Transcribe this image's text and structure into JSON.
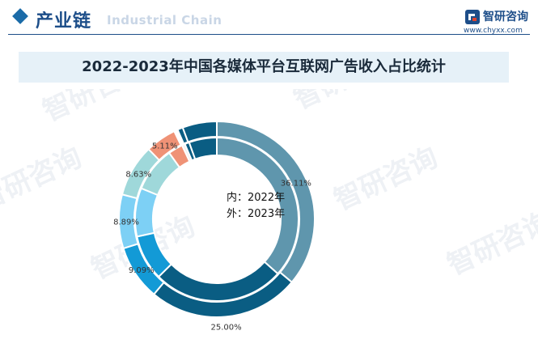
{
  "header": {
    "section_title": "产业链",
    "section_subtitle": "Industrial Chain",
    "brand_name": "智研咨询",
    "brand_url": "www.chyxx.com"
  },
  "chart_title": "2022-2023年中国各媒体平台互联网广告收入占比统计",
  "center_labels": [
    "内：2022年",
    "外：2023年"
  ],
  "watermark_text": "智研咨询",
  "colors": {
    "accent": "#1d4e89"
  },
  "chart_data": {
    "type": "pie",
    "title": "2022-2023年中国各媒体平台互联网广告收入占比统计",
    "series": [
      {
        "name": "2022年",
        "values": [
          36.6,
          26.0,
          9.0,
          9.6,
          8.9,
          2.9,
          0.6,
          0.9,
          5.5
        ],
        "colors": [
          "#5f96ad",
          "#0a5d83",
          "#139ad6",
          "#7dd0f5",
          "#9fd8da",
          "#ef9276",
          "#f0f0f0",
          "#0a5d83",
          "#0a5d83"
        ]
      },
      {
        "name": "2023年",
        "values": [
          36.11,
          25.0,
          9.09,
          8.89,
          8.63,
          5.11,
          0.6,
          0.9,
          5.67
        ],
        "colors": [
          "#5f96ad",
          "#0a5d83",
          "#139ad6",
          "#7dd0f5",
          "#9fd8da",
          "#ef9276",
          "#ffffff",
          "#0a5d83",
          "#0a5d83"
        ]
      }
    ],
    "data_labels": [
      "36.11%",
      "25.00%",
      "9.09%",
      "8.89%",
      "8.63%",
      "5.11%"
    ],
    "legend_placement": "bottom"
  }
}
